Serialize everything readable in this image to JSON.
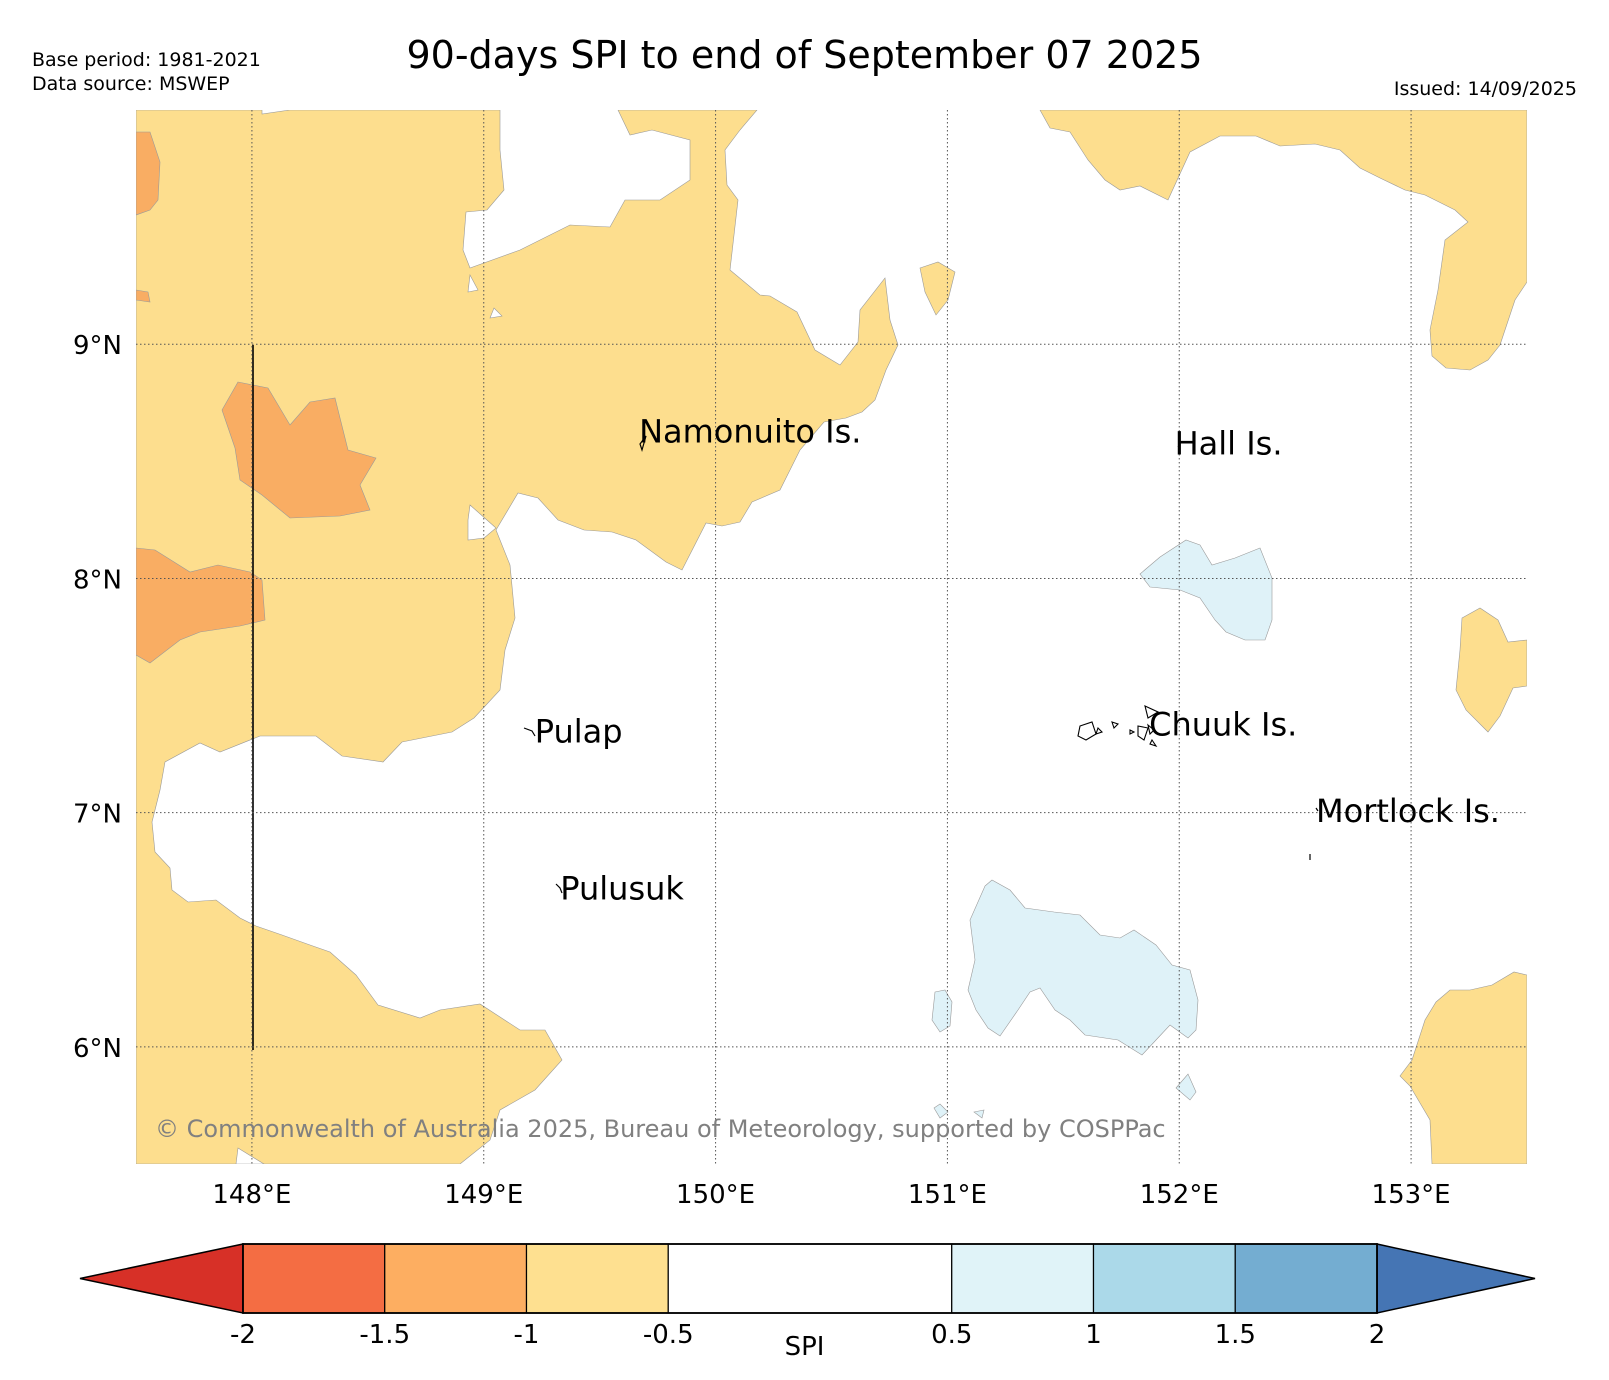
{
  "header": {
    "base_period": "Base period: 1981-2021",
    "data_source": "Data source: MSWEP",
    "issued": "Issued: 14/09/2025",
    "title": "90-days SPI to end of September 07 2025"
  },
  "map": {
    "lon_range": [
      147.5,
      153.5
    ],
    "lat_range": [
      5.5,
      10.0
    ],
    "lat_ticks": [
      {
        "value": 9,
        "label": "9°N"
      },
      {
        "value": 8,
        "label": "8°N"
      },
      {
        "value": 7,
        "label": "7°N"
      },
      {
        "value": 6,
        "label": "6°N"
      }
    ],
    "lon_ticks": [
      {
        "value": 148,
        "label": "148°E"
      },
      {
        "value": 149,
        "label": "149°E"
      },
      {
        "value": 150,
        "label": "150°E"
      },
      {
        "value": 151,
        "label": "151°E"
      },
      {
        "value": 152,
        "label": "152°E"
      },
      {
        "value": 153,
        "label": "153°E"
      }
    ],
    "gridlines": "dotted",
    "island_labels": [
      {
        "name": "Namonuito Is.",
        "lon": 149.67,
        "lat": 8.58
      },
      {
        "name": "Hall Is.",
        "lon": 151.98,
        "lat": 8.53
      },
      {
        "name": "Pulap",
        "lon": 149.22,
        "lat": 7.3
      },
      {
        "name": "Chuuk Is.",
        "lon": 151.87,
        "lat": 7.33
      },
      {
        "name": "Mortlock Is.",
        "lon": 152.59,
        "lat": 6.96
      },
      {
        "name": "Pulusuk",
        "lon": 149.33,
        "lat": 6.63
      }
    ],
    "copyright": "© Commonwealth of Australia 2025, Bureau of Meteorology, supported by COSPPac",
    "colors": {
      "sea_default": "#ffffff",
      "dry_moderate": "#fdde8e",
      "dry_strong": "#f9ad63",
      "wet_mild": "#dff2f8",
      "gridline": "#555555",
      "copyright_text": "#808080"
    }
  },
  "colorbar": {
    "label": "SPI",
    "ticks": [
      "-2",
      "-1.5",
      "-1",
      "-0.5",
      "0.5",
      "1",
      "1.5",
      "2"
    ],
    "below_color": "#d73027",
    "above_color": "#4575b4",
    "bins": [
      {
        "from": -2,
        "to": -1.5,
        "color": "#f46d43"
      },
      {
        "from": -1.5,
        "to": -1,
        "color": "#fdae61"
      },
      {
        "from": -1,
        "to": -0.5,
        "color": "#fee090"
      },
      {
        "from": -0.5,
        "to": 0.5,
        "color": "#ffffff"
      },
      {
        "from": 0.5,
        "to": 1,
        "color": "#e0f3f8"
      },
      {
        "from": 1,
        "to": 1.5,
        "color": "#abd9e9"
      },
      {
        "from": 1.5,
        "to": 2,
        "color": "#74add1"
      }
    ]
  }
}
